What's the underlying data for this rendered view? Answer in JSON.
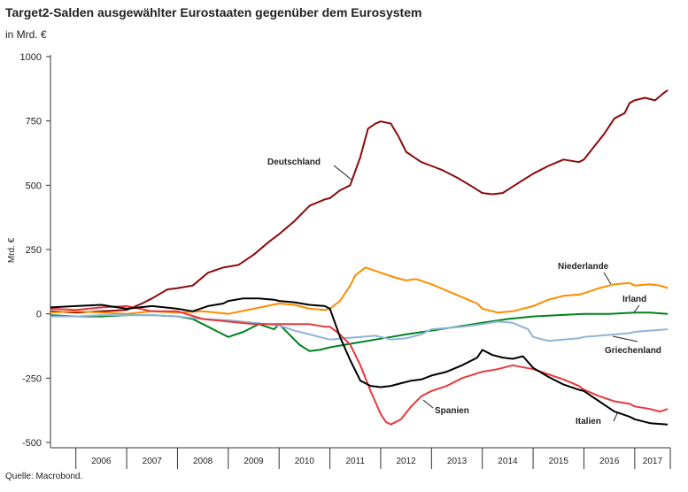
{
  "header": {
    "title": "Target2-Salden ausgewählter Eurostaaten gegenüber dem Eurosystem",
    "unit": "in Mrd. €"
  },
  "footer": {
    "source": "Quelle:  Macrobond."
  },
  "chart_data": {
    "type": "line",
    "title": "Target2-Salden ausgewählter Eurostaaten gegenüber dem Eurosystem",
    "subtitle": "in Mrd. €",
    "ylabel": "Mrd. €",
    "xlabel": "",
    "ylim": [
      -500,
      1000
    ],
    "xlim": [
      2005.5,
      2017.7
    ],
    "yticks": [
      1000,
      750,
      500,
      250,
      0,
      -250,
      -500
    ],
    "ytick_labels": [
      "1000",
      "750",
      "500",
      "250",
      "0",
      "-250",
      "-500"
    ],
    "year_labels": [
      "2006",
      "2007",
      "2008",
      "2009",
      "2010",
      "2011",
      "2012",
      "2013",
      "2014",
      "2015",
      "2016",
      "2017"
    ],
    "grid": false,
    "series": [
      {
        "name": "Deutschland",
        "color": "#8b0a0a",
        "x": [
          2005.5,
          2006.0,
          2006.5,
          2007.0,
          2007.3,
          2007.5,
          2007.8,
          2008.0,
          2008.3,
          2008.6,
          2008.9,
          2009.2,
          2009.5,
          2009.8,
          2010.0,
          2010.3,
          2010.6,
          2010.9,
          2011.0,
          2011.2,
          2011.4,
          2011.6,
          2011.75,
          2011.9,
          2012.0,
          2012.2,
          2012.35,
          2012.5,
          2012.65,
          2012.8,
          2013.0,
          2013.2,
          2013.5,
          2013.8,
          2014.0,
          2014.2,
          2014.4,
          2014.6,
          2014.8,
          2015.0,
          2015.3,
          2015.6,
          2015.9,
          2016.0,
          2016.2,
          2016.4,
          2016.6,
          2016.8,
          2016.9,
          2017.0,
          2017.2,
          2017.4,
          2017.55,
          2017.65
        ],
        "values": [
          10,
          5,
          10,
          15,
          40,
          60,
          95,
          100,
          110,
          160,
          180,
          190,
          230,
          280,
          310,
          360,
          420,
          445,
          450,
          480,
          500,
          610,
          720,
          740,
          748,
          740,
          690,
          630,
          610,
          590,
          575,
          560,
          530,
          495,
          470,
          465,
          470,
          495,
          520,
          545,
          575,
          600,
          590,
          600,
          650,
          700,
          760,
          780,
          820,
          830,
          840,
          830,
          855,
          870
        ]
      },
      {
        "name": "Niederlande",
        "color": "#ff8c00",
        "x": [
          2005.5,
          2006.0,
          2006.5,
          2007.0,
          2007.5,
          2008.0,
          2008.5,
          2009.0,
          2009.5,
          2010.0,
          2010.3,
          2010.6,
          2010.9,
          2011.0,
          2011.2,
          2011.4,
          2011.5,
          2011.7,
          2012.0,
          2012.3,
          2012.5,
          2012.7,
          2013.0,
          2013.3,
          2013.6,
          2013.9,
          2014.0,
          2014.3,
          2014.6,
          2015.0,
          2015.3,
          2015.6,
          2015.9,
          2016.0,
          2016.3,
          2016.6,
          2016.9,
          2017.0,
          2017.3,
          2017.5,
          2017.65
        ],
        "values": [
          5,
          10,
          5,
          0,
          10,
          5,
          10,
          0,
          20,
          40,
          35,
          20,
          15,
          20,
          50,
          110,
          150,
          180,
          160,
          140,
          130,
          135,
          115,
          90,
          65,
          40,
          20,
          5,
          10,
          30,
          55,
          70,
          75,
          80,
          100,
          115,
          120,
          110,
          115,
          110,
          100
        ]
      },
      {
        "name": "Irland",
        "color": "#00821e",
        "x": [
          2005.5,
          2006.0,
          2006.5,
          2007.0,
          2007.5,
          2008.0,
          2008.3,
          2008.6,
          2008.8,
          2009.0,
          2009.3,
          2009.6,
          2009.9,
          2010.0,
          2010.2,
          2010.4,
          2010.6,
          2010.8,
          2011.0,
          2011.3,
          2011.6,
          2011.9,
          2012.2,
          2012.5,
          2013.0,
          2013.5,
          2014.0,
          2014.5,
          2015.0,
          2015.5,
          2016.0,
          2016.5,
          2017.0,
          2017.3,
          2017.65
        ],
        "values": [
          -5,
          -10,
          -10,
          -5,
          -5,
          -10,
          -20,
          -50,
          -70,
          -90,
          -70,
          -40,
          -60,
          -40,
          -80,
          -120,
          -145,
          -140,
          -130,
          -120,
          -110,
          -100,
          -90,
          -80,
          -65,
          -50,
          -35,
          -20,
          -10,
          -5,
          0,
          0,
          5,
          5,
          0
        ]
      },
      {
        "name": "Griechenland",
        "color": "#8fb4d8",
        "x": [
          2005.5,
          2006.0,
          2006.5,
          2007.0,
          2007.5,
          2008.0,
          2008.5,
          2009.0,
          2009.5,
          2010.0,
          2010.3,
          2010.6,
          2010.9,
          2011.0,
          2011.3,
          2011.6,
          2011.9,
          2012.0,
          2012.2,
          2012.5,
          2012.8,
          2013.0,
          2013.3,
          2013.6,
          2014.0,
          2014.3,
          2014.6,
          2014.9,
          2015.0,
          2015.3,
          2015.6,
          2015.9,
          2016.0,
          2016.3,
          2016.6,
          2016.9,
          2017.0,
          2017.3,
          2017.65
        ],
        "values": [
          -10,
          -10,
          -5,
          -5,
          -5,
          -10,
          -20,
          -25,
          -35,
          -45,
          -65,
          -80,
          -95,
          -100,
          -95,
          -90,
          -85,
          -90,
          -100,
          -95,
          -80,
          -60,
          -55,
          -50,
          -40,
          -30,
          -35,
          -60,
          -90,
          -105,
          -100,
          -95,
          -90,
          -85,
          -80,
          -75,
          -70,
          -65,
          -60
        ]
      },
      {
        "name": "Spanien",
        "color": "#e8383d",
        "x": [
          2005.5,
          2006.0,
          2006.5,
          2007.0,
          2007.5,
          2008.0,
          2008.5,
          2009.0,
          2009.5,
          2010.0,
          2010.3,
          2010.6,
          2010.9,
          2011.0,
          2011.2,
          2011.4,
          2011.6,
          2011.8,
          2012.0,
          2012.1,
          2012.2,
          2012.4,
          2012.6,
          2012.8,
          2013.0,
          2013.3,
          2013.6,
          2014.0,
          2014.3,
          2014.6,
          2015.0,
          2015.3,
          2015.6,
          2015.9,
          2016.0,
          2016.3,
          2016.6,
          2016.9,
          2017.0,
          2017.3,
          2017.5,
          2017.65
        ],
        "values": [
          20,
          15,
          25,
          30,
          10,
          10,
          -20,
          -30,
          -40,
          -40,
          -40,
          -40,
          -50,
          -50,
          -80,
          -120,
          -200,
          -300,
          -390,
          -420,
          -430,
          -410,
          -360,
          -320,
          -300,
          -280,
          -250,
          -225,
          -215,
          -200,
          -215,
          -235,
          -255,
          -280,
          -295,
          -320,
          -340,
          -350,
          -360,
          -370,
          -380,
          -370
        ]
      },
      {
        "name": "Italien",
        "color": "#000000",
        "x": [
          2005.5,
          2006.0,
          2006.5,
          2007.0,
          2007.5,
          2008.0,
          2008.3,
          2008.6,
          2008.9,
          2009.0,
          2009.3,
          2009.6,
          2009.9,
          2010.0,
          2010.3,
          2010.6,
          2010.9,
          2011.0,
          2011.2,
          2011.4,
          2011.6,
          2011.8,
          2012.0,
          2012.2,
          2012.4,
          2012.6,
          2012.8,
          2013.0,
          2013.3,
          2013.6,
          2013.9,
          2014.0,
          2014.2,
          2014.4,
          2014.6,
          2014.8,
          2015.0,
          2015.3,
          2015.6,
          2015.9,
          2016.0,
          2016.3,
          2016.6,
          2016.9,
          2017.0,
          2017.3,
          2017.65
        ],
        "values": [
          25,
          30,
          35,
          20,
          30,
          20,
          10,
          30,
          40,
          50,
          60,
          60,
          55,
          50,
          45,
          35,
          30,
          20,
          -90,
          -180,
          -260,
          -280,
          -285,
          -280,
          -270,
          -260,
          -255,
          -240,
          -225,
          -200,
          -170,
          -140,
          -160,
          -170,
          -175,
          -165,
          -210,
          -245,
          -275,
          -295,
          -300,
          -340,
          -380,
          -400,
          -410,
          -425,
          -430
        ]
      }
    ],
    "annotations": [
      "Deutschland",
      "Niederlande",
      "Irland",
      "Griechenland",
      "Spanien",
      "Italien"
    ]
  }
}
